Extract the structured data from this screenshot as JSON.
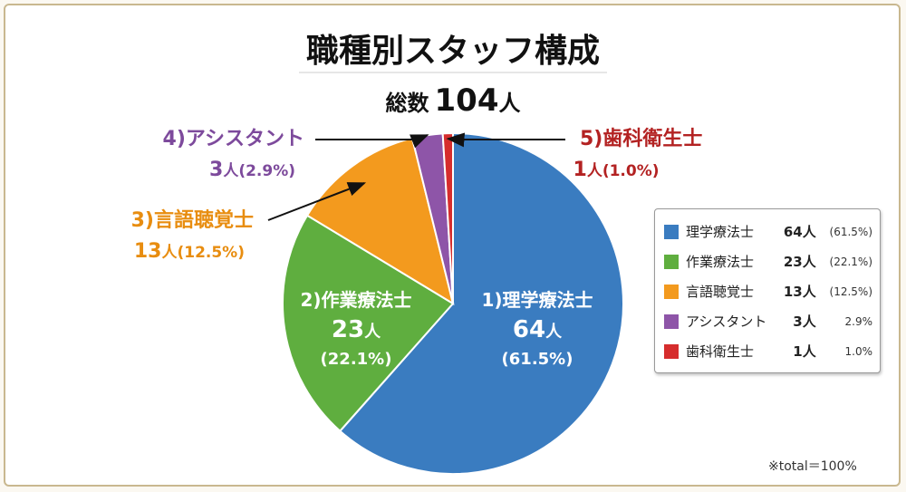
{
  "chart_data": {
    "type": "pie",
    "title": "職種別スタッフ構成",
    "subtitle_prefix": "総数",
    "total": "104",
    "unit": "人",
    "categories": [
      "理学療法士",
      "作業療法士",
      "言語聴覚士",
      "アシスタント",
      "歯科衛生士"
    ],
    "numbers": [
      "1)",
      "2)",
      "3)",
      "4)",
      "5)"
    ],
    "values": [
      64,
      23,
      13,
      3,
      1
    ],
    "percent_labels": [
      "61.5%",
      "22.1%",
      "12.5%",
      "2.9%",
      "1.0%"
    ],
    "colors": [
      "#3a7cc0",
      "#5fae3f",
      "#f39a1e",
      "#8e55a8",
      "#d62d2d"
    ],
    "label_colors": [
      "#ffffff",
      "#ffffff",
      "#e88d10",
      "#7d4a9c",
      "#b32222"
    ],
    "legend_placement": "right",
    "footnote": "※total＝100%"
  }
}
